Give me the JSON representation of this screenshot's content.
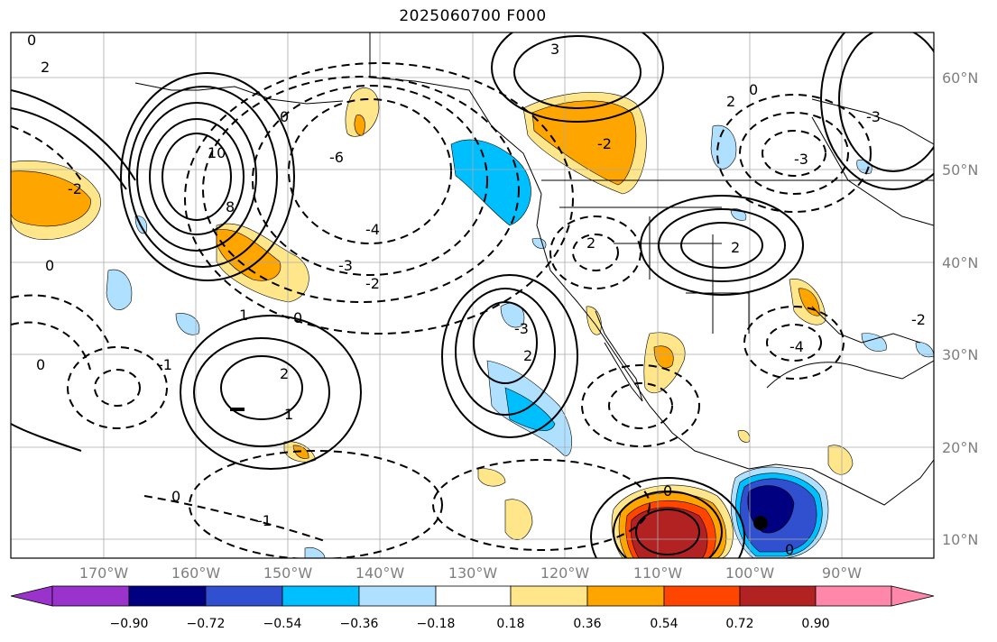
{
  "title": "2025060700 F000",
  "lat_labels": [
    "60°N",
    "50°N",
    "40°N",
    "30°N",
    "20°N",
    "10°N"
  ],
  "lon_labels": [
    "170°W",
    "160°W",
    "150°W",
    "140°W",
    "130°W",
    "120°W",
    "110°W",
    "100°W",
    "90°W"
  ],
  "colorbar": {
    "ticks": [
      "−0.90",
      "−0.72",
      "−0.54",
      "−0.36",
      "−0.18",
      "0.18",
      "0.36",
      "0.54",
      "0.72",
      "0.90"
    ],
    "colors": [
      "#9933cc",
      "#000080",
      "#3050d0",
      "#00bfff",
      "#b0e0ff",
      "#ffffff",
      "#ffe68a",
      "#ffa500",
      "#ff4500",
      "#b22222",
      "#ff88aa"
    ]
  },
  "contour_labels": [
    "0",
    "2",
    "0",
    "-2",
    "4",
    "-4",
    "-6",
    "0",
    "6",
    "8",
    "10",
    "-2",
    "-4",
    "-3",
    "-2",
    "0",
    "2",
    "2",
    "-3",
    "-3",
    "-4",
    "-4",
    "-2",
    "0",
    "2",
    "2",
    "2",
    "1",
    "0",
    "-1",
    "-1",
    "-2",
    "-2",
    "0",
    "1",
    "2",
    "0",
    "-1",
    "0",
    "1",
    "3",
    "-4",
    "-3",
    "-2",
    "0",
    "-2",
    "-2",
    "-1",
    "-1",
    "0",
    "0",
    "-3",
    "-2"
  ]
}
